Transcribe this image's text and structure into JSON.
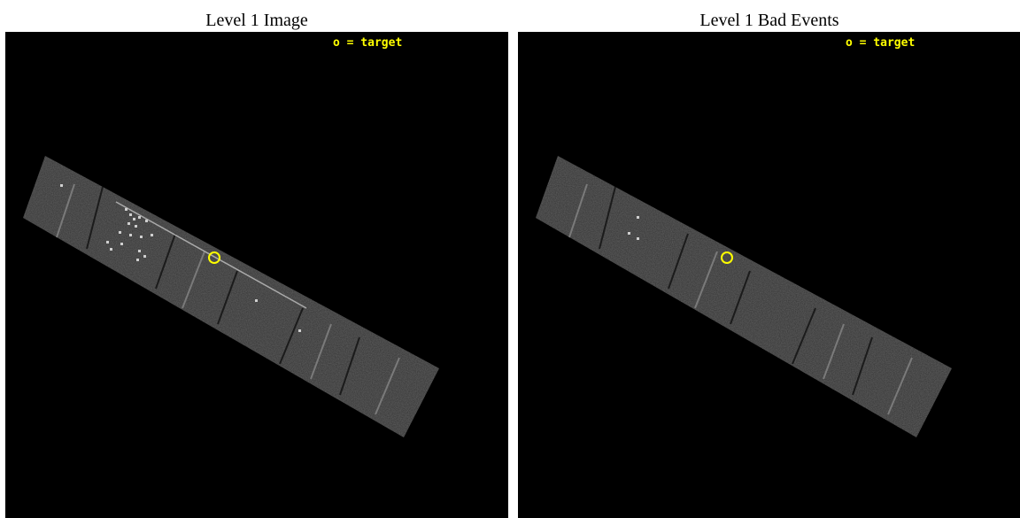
{
  "panels": [
    {
      "title": "Level 1 Image",
      "legend": "o = target"
    },
    {
      "title": "Level 1 Bad Events",
      "legend": "o = target"
    }
  ],
  "colors": {
    "background": "#000000",
    "detector_strip": "#3a3a3a",
    "bad_event": "#cfcfcf",
    "target_marker": "#ffff00",
    "legend_text": "#ffff00"
  }
}
